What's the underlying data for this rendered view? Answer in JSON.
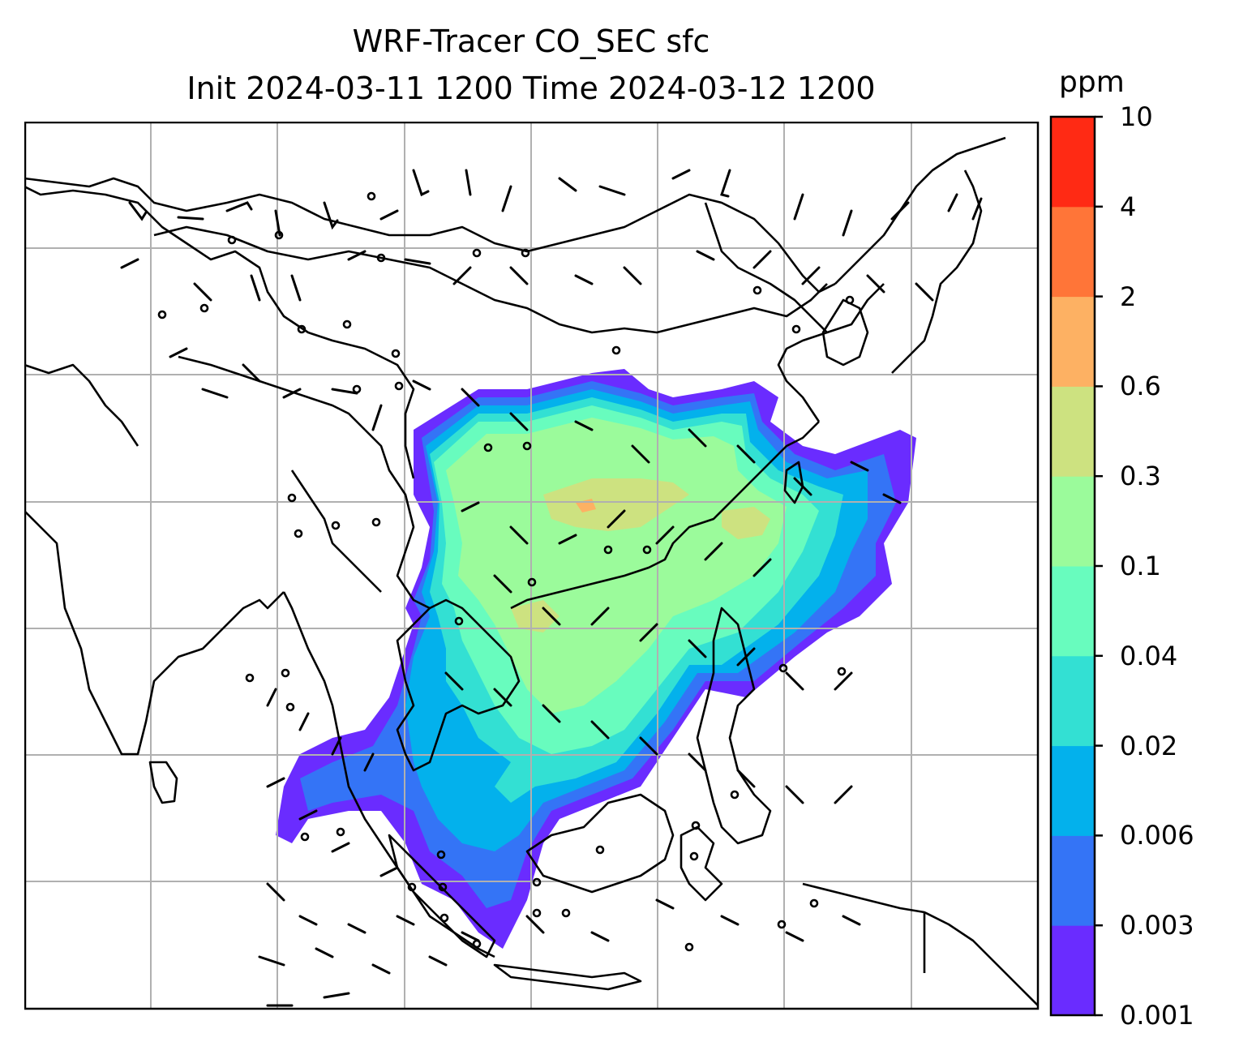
{
  "title_line1": "WRF-Tracer CO_SEC sfc",
  "title_line2": "Init 2024-03-11 1200 Time 2024-03-12 1200",
  "colorbar": {
    "units": "ppm",
    "levels": [
      "0.001",
      "0.003",
      "0.006",
      "0.02",
      "0.04",
      "0.1",
      "0.3",
      "0.6",
      "2",
      "4",
      "10"
    ],
    "colors": [
      "#6a2cff",
      "#3474f6",
      "#03b1ec",
      "#33e0d3",
      "#68fcbe",
      "#9bfb9b",
      "#cde280",
      "#fdb163",
      "#ff7538",
      "#ff2a14"
    ]
  },
  "map": {
    "variable": "CO_SEC surface tracer concentration",
    "overlays": [
      "coastlines",
      "country-borders",
      "lat-lon-gridlines",
      "wind-barbs",
      "calm-circles"
    ],
    "gridline_color": "#b0b0b0"
  }
}
